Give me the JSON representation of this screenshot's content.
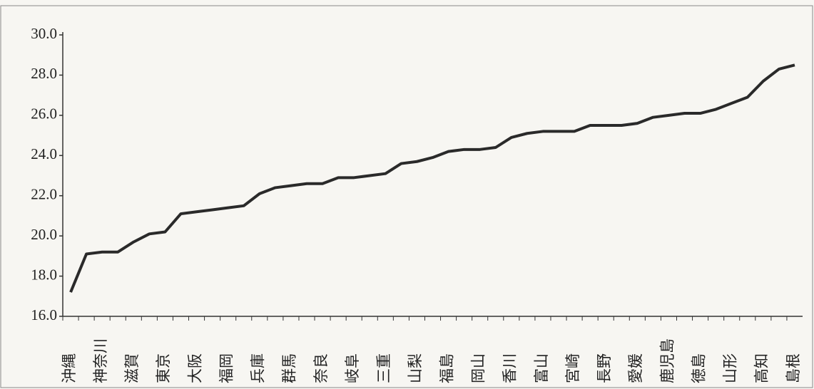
{
  "chart_data": {
    "type": "line",
    "categories": [
      "沖縄",
      null,
      "神奈川",
      null,
      "滋賀",
      null,
      "東京",
      null,
      "大阪",
      null,
      "福岡",
      null,
      "兵庫",
      null,
      "群馬",
      null,
      "奈良",
      null,
      "岐阜",
      null,
      "三重",
      null,
      "山梨",
      null,
      "福島",
      null,
      "岡山",
      null,
      "香川",
      null,
      "富山",
      null,
      "宮崎",
      null,
      "長野",
      null,
      "愛媛",
      null,
      "鹿児島",
      null,
      "徳島",
      null,
      "山形",
      null,
      "高知",
      null,
      "島根"
    ],
    "values": [
      17.2,
      19.1,
      19.2,
      19.2,
      19.7,
      20.1,
      20.2,
      21.1,
      21.2,
      21.3,
      21.4,
      21.5,
      22.1,
      22.4,
      22.5,
      22.6,
      22.6,
      22.9,
      22.9,
      23.0,
      23.1,
      23.6,
      23.7,
      23.9,
      24.2,
      24.3,
      24.3,
      24.4,
      24.9,
      25.1,
      25.2,
      25.2,
      25.2,
      25.5,
      25.5,
      25.5,
      25.6,
      25.9,
      26.0,
      26.1,
      26.1,
      26.3,
      26.6,
      26.9,
      27.7,
      28.3,
      28.5
    ],
    "color": "#2a2a2a",
    "ylim": [
      16,
      30
    ],
    "yticks": [
      {
        "value": 16,
        "label": "16.0"
      },
      {
        "value": 18,
        "label": "18.0"
      },
      {
        "value": 20,
        "label": "20.0"
      },
      {
        "value": 22,
        "label": "22.0"
      },
      {
        "value": 24,
        "label": "24.0"
      },
      {
        "value": 26,
        "label": "26.0"
      },
      {
        "value": 28,
        "label": "28.0"
      },
      {
        "value": 30,
        "label": "30.0"
      }
    ]
  }
}
